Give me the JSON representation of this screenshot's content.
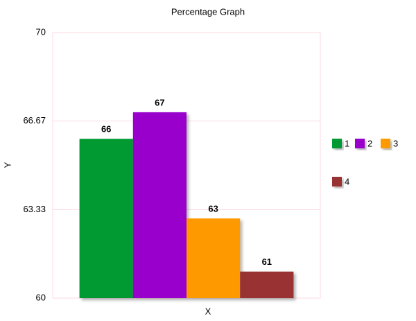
{
  "chart_data": {
    "type": "bar",
    "title": "Percentage Graph",
    "xlabel": "X",
    "ylabel": "Y",
    "categories": [
      null
    ],
    "series": [
      {
        "name": "1",
        "color": "#009933",
        "values": [
          66
        ]
      },
      {
        "name": "2",
        "color": "#9900cc",
        "values": [
          67
        ]
      },
      {
        "name": "3",
        "color": "#ff9900",
        "values": [
          63
        ]
      },
      {
        "name": "4",
        "color": "#993333",
        "values": [
          61
        ]
      }
    ],
    "ylim": [
      60,
      70
    ],
    "yticks": [
      60,
      63.33,
      66.67,
      70
    ],
    "grid": true,
    "legend": "right"
  }
}
